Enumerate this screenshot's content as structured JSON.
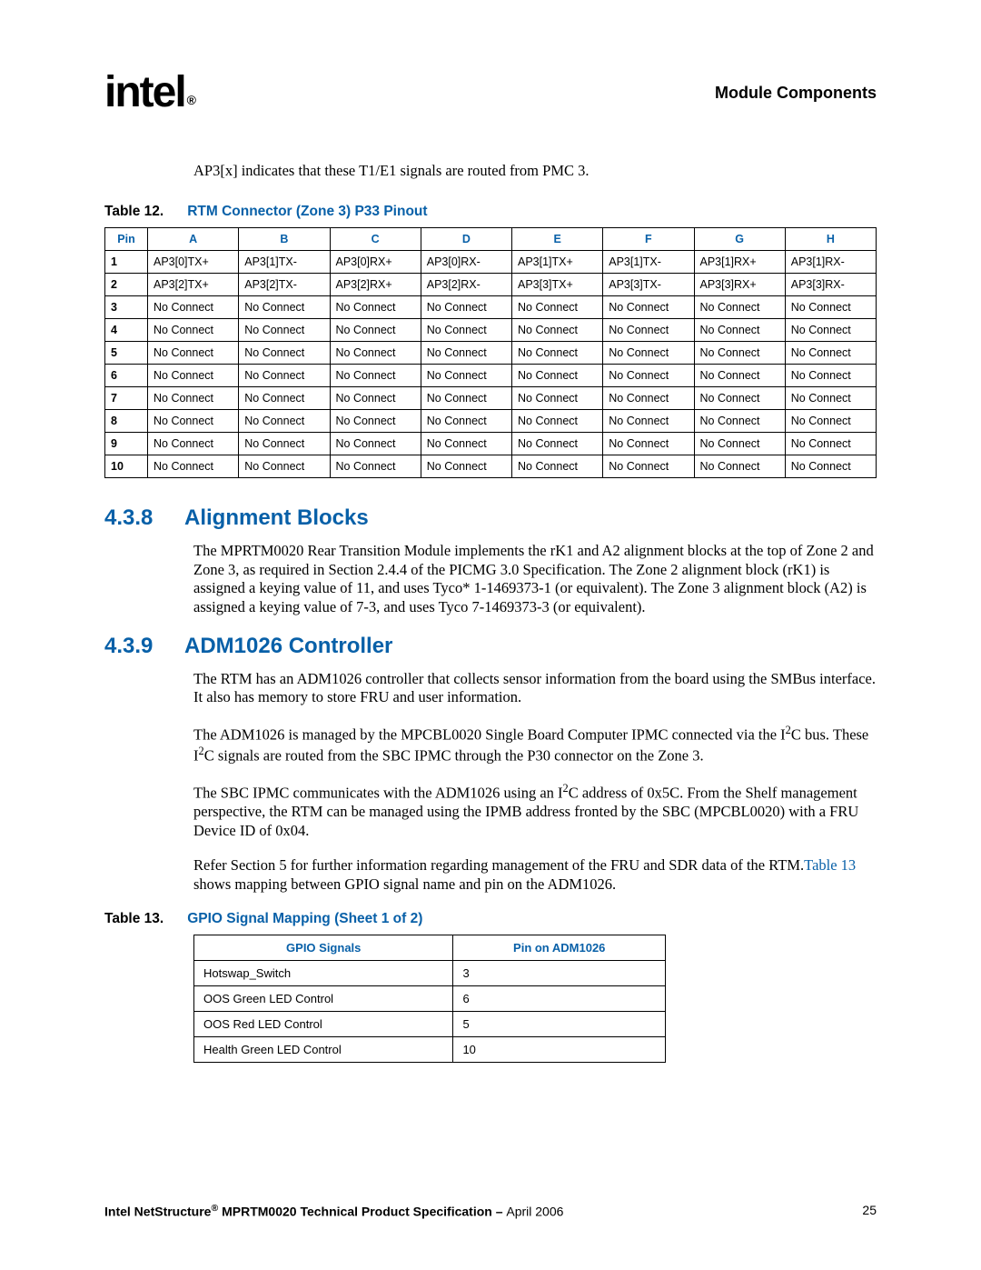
{
  "header": {
    "logo_text": "intel",
    "reg_mark": "®",
    "right_text": "Module Components"
  },
  "intro": "AP3[x] indicates that these T1/E1 signals are routed from PMC 3.",
  "table12": {
    "label": "Table 12.",
    "title": "RTM Connector (Zone 3) P33 Pinout",
    "header_color": "#0860a8",
    "columns": [
      "Pin",
      "A",
      "B",
      "C",
      "D",
      "E",
      "F",
      "G",
      "H"
    ],
    "rows": [
      [
        "1",
        "AP3[0]TX+",
        "AP3[1]TX-",
        "AP3[0]RX+",
        "AP3[0]RX-",
        "AP3[1]TX+",
        "AP3[1]TX-",
        "AP3[1]RX+",
        "AP3[1]RX-"
      ],
      [
        "2",
        "AP3[2]TX+",
        "AP3[2]TX-",
        "AP3[2]RX+",
        "AP3[2]RX-",
        "AP3[3]TX+",
        "AP3[3]TX-",
        "AP3[3]RX+",
        "AP3[3]RX-"
      ],
      [
        "3",
        "No Connect",
        "No Connect",
        "No Connect",
        "No Connect",
        "No Connect",
        "No Connect",
        "No Connect",
        "No Connect"
      ],
      [
        "4",
        "No Connect",
        "No Connect",
        "No Connect",
        "No Connect",
        "No Connect",
        "No Connect",
        "No Connect",
        "No Connect"
      ],
      [
        "5",
        "No Connect",
        "No Connect",
        "No Connect",
        "No Connect",
        "No Connect",
        "No Connect",
        "No Connect",
        "No Connect"
      ],
      [
        "6",
        "No Connect",
        "No Connect",
        "No Connect",
        "No Connect",
        "No Connect",
        "No Connect",
        "No Connect",
        "No Connect"
      ],
      [
        "7",
        "No Connect",
        "No Connect",
        "No Connect",
        "No Connect",
        "No Connect",
        "No Connect",
        "No Connect",
        "No Connect"
      ],
      [
        "8",
        "No Connect",
        "No Connect",
        "No Connect",
        "No Connect",
        "No Connect",
        "No Connect",
        "No Connect",
        "No Connect"
      ],
      [
        "9",
        "No Connect",
        "No Connect",
        "No Connect",
        "No Connect",
        "No Connect",
        "No Connect",
        "No Connect",
        "No Connect"
      ],
      [
        "10",
        "No Connect",
        "No Connect",
        "No Connect",
        "No Connect",
        "No Connect",
        "No Connect",
        "No Connect",
        "No Connect"
      ]
    ]
  },
  "section438": {
    "number": "4.3.8",
    "title": "Alignment Blocks",
    "para": "The MPRTM0020 Rear Transition Module implements the rK1 and A2 alignment blocks at the top of Zone 2 and Zone 3, as required in Section 2.4.4 of the PICMG 3.0 Specification. The Zone 2 alignment block (rK1) is assigned a keying value of 11, and uses Tyco* 1-1469373-1 (or equivalent). The Zone 3 alignment block (A2) is assigned a keying value of 7-3, and uses Tyco 7-1469373-3 (or equivalent)."
  },
  "section439": {
    "number": "4.3.9",
    "title": "ADM1026 Controller",
    "para1": "The RTM has an ADM1026 controller that collects sensor information from the board using the SMBus interface. It also has memory to store FRU and user information.",
    "para2_a": "The ADM1026 is managed by the MPCBL0020 Single Board Computer IPMC connected via the I",
    "para2_b": "C bus. These I",
    "para2_c": "C signals are routed from the SBC IPMC through the P30 connector on the Zone 3.",
    "para3_a": "The SBC IPMC communicates with the ADM1026 using an I",
    "para3_b": "C address of 0x5C. From the Shelf management perspective, the RTM can be managed using the IPMB address fronted by the SBC (MPCBL0020) with a FRU Device ID of 0x04.",
    "para4_a": "Refer Section 5 for further information regarding management of the FRU and SDR data of the RTM.",
    "para4_xref": "Table 13",
    "para4_b": " shows mapping between GPIO signal name and pin on the ADM1026."
  },
  "table13": {
    "label": "Table 13.",
    "title": "GPIO Signal Mapping (Sheet 1 of 2)",
    "columns": [
      "GPIO Signals",
      "Pin on ADM1026"
    ],
    "rows": [
      [
        "Hotswap_Switch",
        "3"
      ],
      [
        "OOS Green LED Control",
        "6"
      ],
      [
        "OOS Red LED Control",
        "5"
      ],
      [
        "Health Green LED Control",
        "10"
      ]
    ]
  },
  "footer": {
    "product": "Intel NetStructure",
    "reg": "®",
    "middle": " MPRTM0020 Technical Product Specification – ",
    "date": "April 2006",
    "page": "25"
  }
}
